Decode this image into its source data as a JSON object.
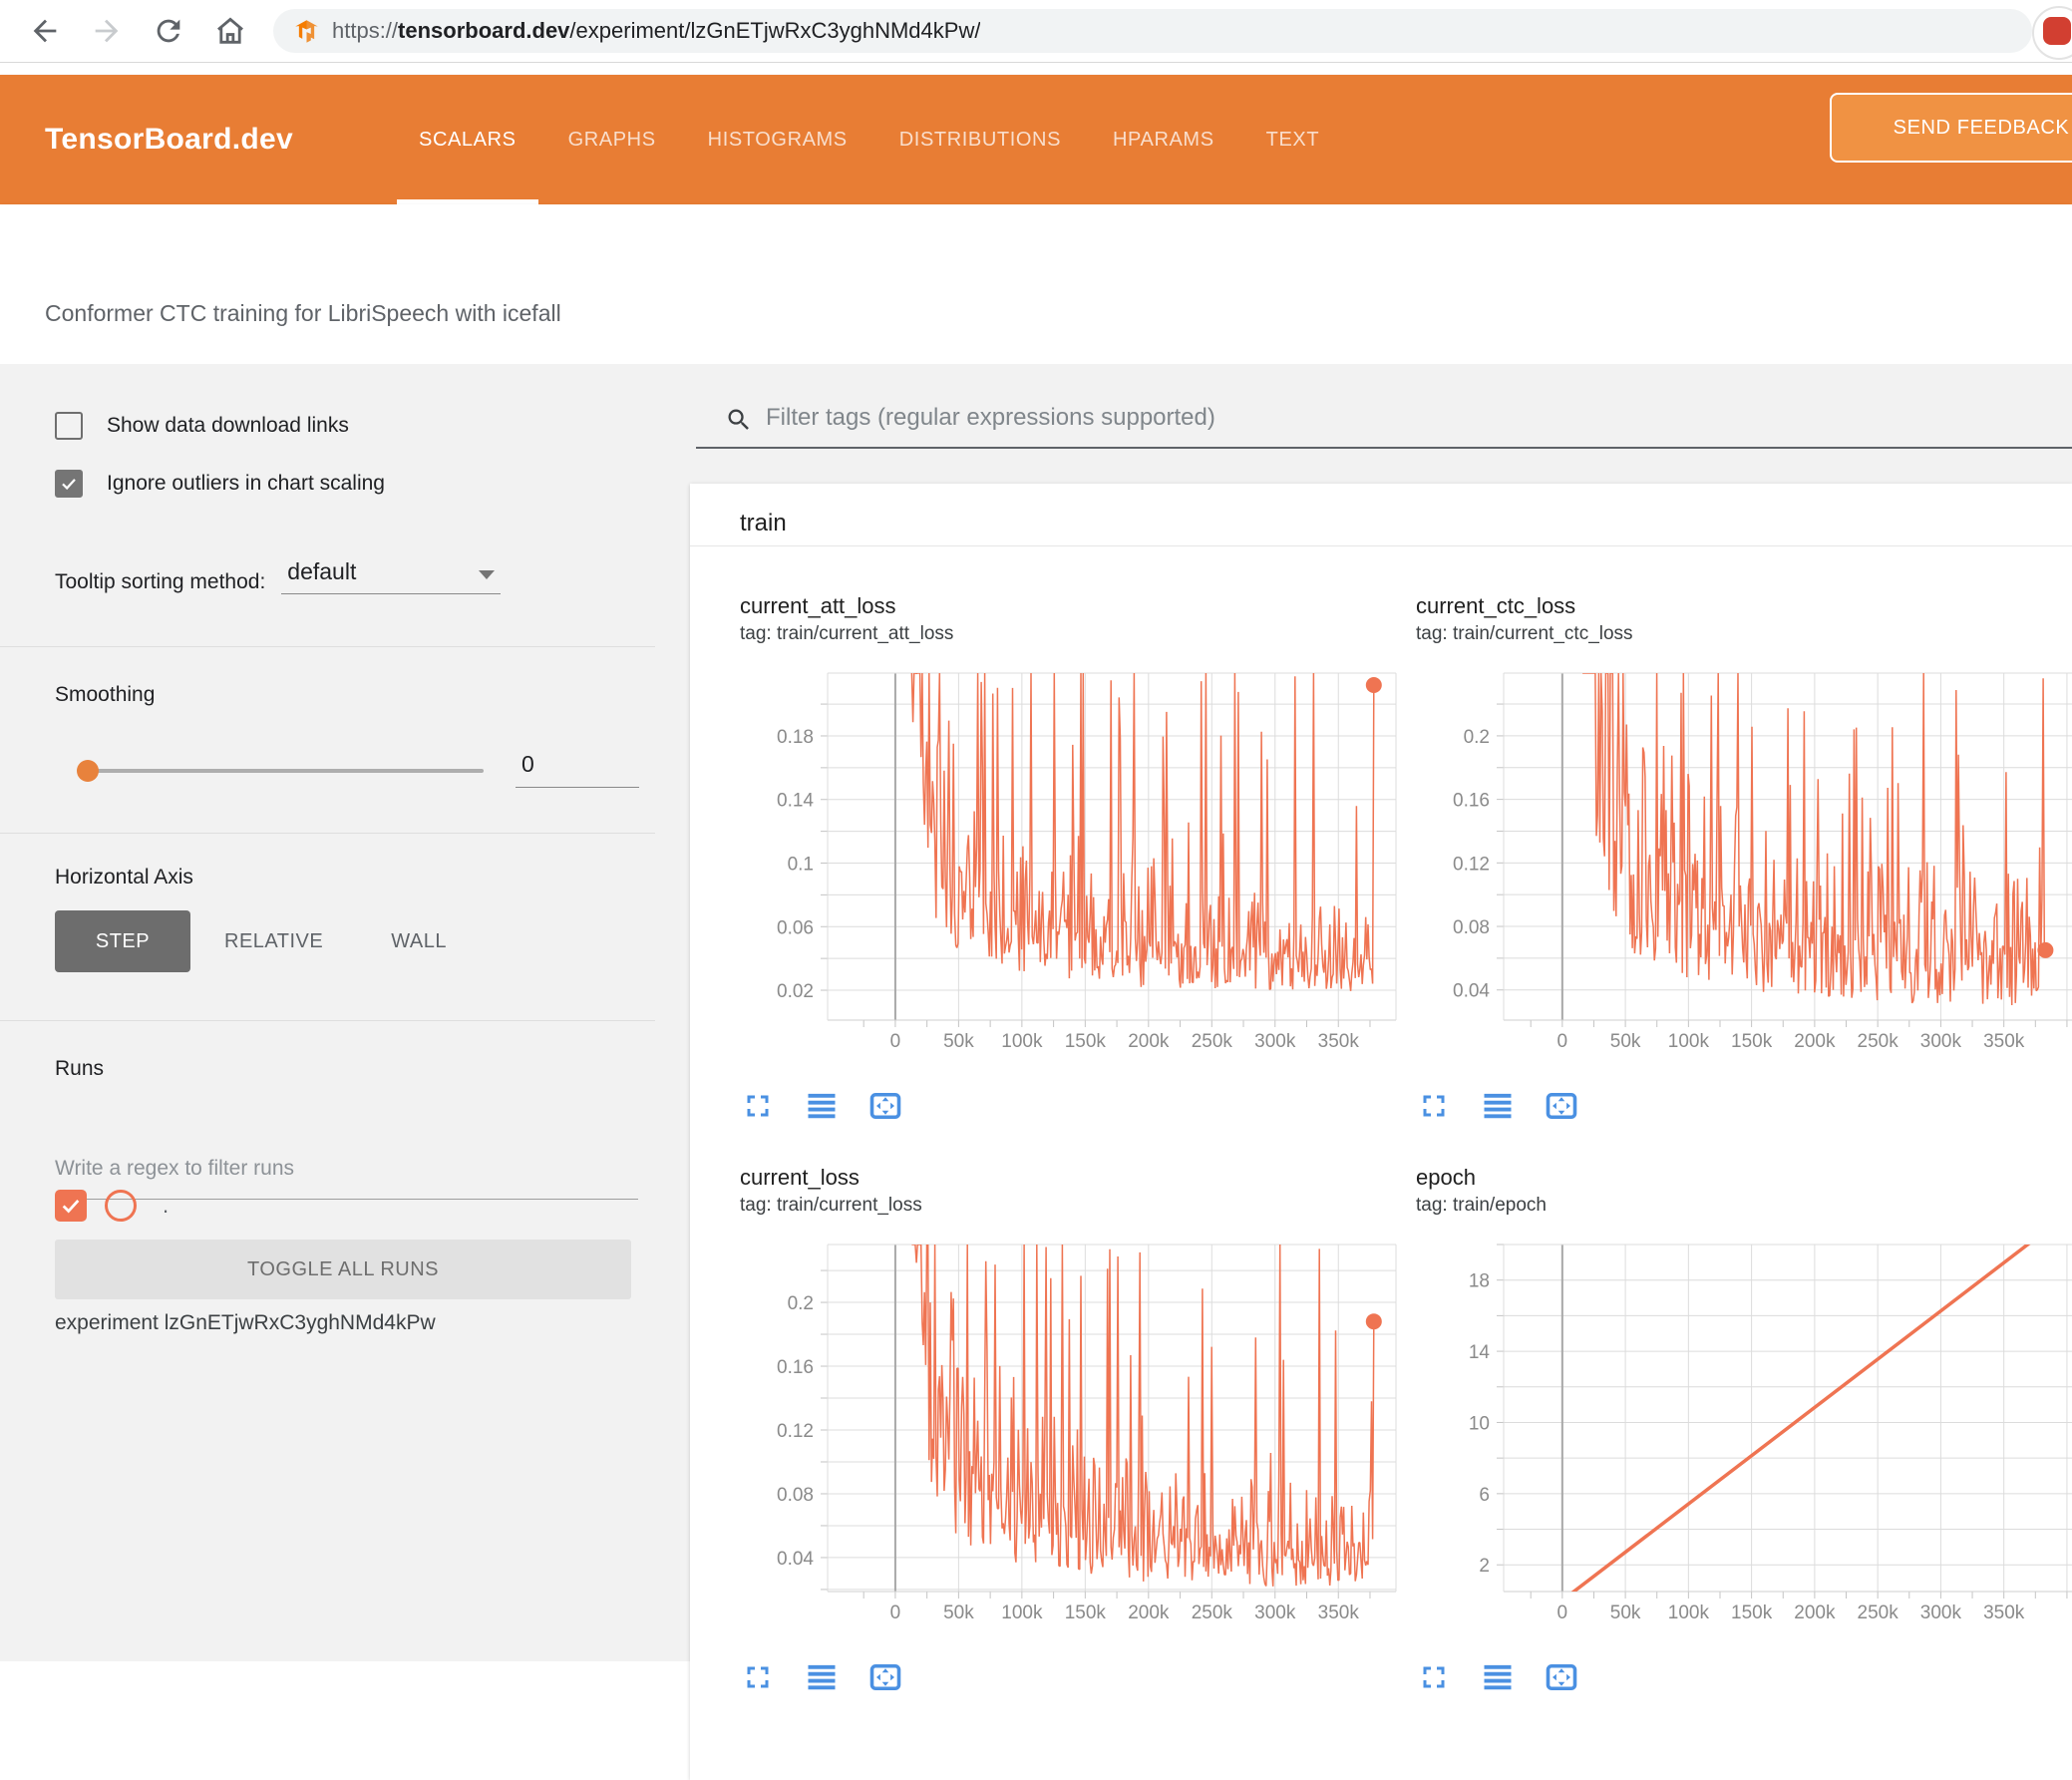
{
  "browser": {
    "url_scheme": "https://",
    "url_domain": "tensorboard.dev",
    "url_path": "/experiment/lzGnETjwRxC3yghNMd4kPw/"
  },
  "header": {
    "brand": "TensorBoard.dev",
    "tabs": [
      {
        "label": "SCALARS",
        "active": true
      },
      {
        "label": "GRAPHS",
        "active": false
      },
      {
        "label": "HISTOGRAMS",
        "active": false
      },
      {
        "label": "DISTRIBUTIONS",
        "active": false
      },
      {
        "label": "HPARAMS",
        "active": false
      },
      {
        "label": "TEXT",
        "active": false
      }
    ],
    "feedback_label": "SEND FEEDBACK"
  },
  "title_band": {
    "title": "Conformer CTC training for LibriSpeech with icefall"
  },
  "sidebar": {
    "show_download_label": "Show data download links",
    "show_download_checked": false,
    "ignore_outliers_label": "Ignore outliers in chart scaling",
    "ignore_outliers_checked": true,
    "tooltip_label": "Tooltip sorting method:",
    "tooltip_value": "default",
    "smoothing_label": "Smoothing",
    "smoothing_value": "0",
    "haxis_label": "Horizontal Axis",
    "haxis_options": [
      "STEP",
      "RELATIVE",
      "WALL"
    ],
    "haxis_selected": "STEP",
    "runs_label": "Runs",
    "runs_filter_placeholder": "Write a regex to filter runs",
    "run_name": ".",
    "run_checked": true,
    "toggle_all_label": "TOGGLE ALL RUNS",
    "experiment_label": "experiment lzGnETjwRxC3yghNMd4kPw"
  },
  "main": {
    "filter_placeholder": "Filter tags (regular expressions supported)",
    "group_label": "train"
  },
  "colors": {
    "header_orange": "#e87d34",
    "run_orange": "#ef7452",
    "action_blue": "#4a90e2"
  },
  "chart_data": [
    {
      "type": "line",
      "title": "current_att_loss",
      "tag_line": "tag: train/current_att_loss",
      "color": "#ef7452",
      "legend": ".",
      "xlim": [
        -53500,
        395500
      ],
      "ylim": [
        0.0012,
        0.2195
      ],
      "bleed": false,
      "xminor_start": -25000,
      "xminor_step": 25000,
      "xticks": [
        {
          "v": 0,
          "label": "0"
        },
        {
          "v": 50000,
          "label": "50k"
        },
        {
          "v": 100000,
          "label": "100k"
        },
        {
          "v": 150000,
          "label": "150k"
        },
        {
          "v": 200000,
          "label": "200k"
        },
        {
          "v": 250000,
          "label": "250k"
        },
        {
          "v": 300000,
          "label": "300k"
        },
        {
          "v": 350000,
          "label": "350k"
        },
        {
          "v": 400000,
          "label": ""
        }
      ],
      "yticks": [
        {
          "v": 0.02,
          "label": "0.02"
        },
        {
          "v": 0.04,
          "label": ""
        },
        {
          "v": 0.06,
          "label": "0.06"
        },
        {
          "v": 0.08,
          "label": ""
        },
        {
          "v": 0.1,
          "label": "0.1"
        },
        {
          "v": 0.12,
          "label": ""
        },
        {
          "v": 0.14,
          "label": "0.14"
        },
        {
          "v": 0.16,
          "label": ""
        },
        {
          "v": 0.18,
          "label": "0.18"
        },
        {
          "v": 0.2,
          "label": ""
        }
      ],
      "series": {
        "start": 13000,
        "end": 378000,
        "n": 400,
        "seed": 11,
        "trend": [
          [
            13000,
            0.3
          ],
          [
            20000,
            0.165
          ],
          [
            30000,
            0.1
          ],
          [
            50000,
            0.068
          ],
          [
            75000,
            0.058
          ],
          [
            100000,
            0.052
          ],
          [
            130000,
            0.046
          ],
          [
            160000,
            0.04
          ],
          [
            200000,
            0.036
          ],
          [
            250000,
            0.034
          ],
          [
            300000,
            0.032
          ],
          [
            340000,
            0.031
          ],
          [
            378000,
            0.03
          ]
        ],
        "noise": {
          "jit": 0.85,
          "med_p": 0.3,
          "med": [
            1.3,
            1.2
          ],
          "big_p": 0.06,
          "big": [
            2.5,
            3.5
          ],
          "huge_p": 0.03
        },
        "end_value": 0.212
      },
      "end_dot": true,
      "stroke": 1.5
    },
    {
      "type": "line",
      "title": "current_ctc_loss",
      "tag_line": "tag: train/current_ctc_loss",
      "color": "#ef7452",
      "legend": ".",
      "xlim": [
        -46500,
        404000
      ],
      "ylim": [
        0.021,
        0.2395
      ],
      "bleed": true,
      "xminor_start": -25000,
      "xminor_step": 25000,
      "xticks": [
        {
          "v": 0,
          "label": "0"
        },
        {
          "v": 50000,
          "label": "50k"
        },
        {
          "v": 100000,
          "label": "100k"
        },
        {
          "v": 150000,
          "label": "150k"
        },
        {
          "v": 200000,
          "label": "200k"
        },
        {
          "v": 250000,
          "label": "250k"
        },
        {
          "v": 300000,
          "label": "300k"
        },
        {
          "v": 350000,
          "label": "350k"
        },
        {
          "v": 400000,
          "label": ""
        }
      ],
      "yticks": [
        {
          "v": 0.04,
          "label": "0.04"
        },
        {
          "v": 0.06,
          "label": ""
        },
        {
          "v": 0.08,
          "label": "0.08"
        },
        {
          "v": 0.1,
          "label": ""
        },
        {
          "v": 0.12,
          "label": "0.12"
        },
        {
          "v": 0.14,
          "label": ""
        },
        {
          "v": 0.16,
          "label": "0.16"
        },
        {
          "v": 0.18,
          "label": ""
        },
        {
          "v": 0.2,
          "label": "0.2"
        },
        {
          "v": 0.22,
          "label": ""
        }
      ],
      "series": {
        "start": 16000,
        "end": 383000,
        "n": 400,
        "seed": 23,
        "trend": [
          [
            16000,
            0.4
          ],
          [
            25000,
            0.22
          ],
          [
            40000,
            0.13
          ],
          [
            60000,
            0.1
          ],
          [
            90000,
            0.082
          ],
          [
            120000,
            0.072
          ],
          [
            150000,
            0.065
          ],
          [
            200000,
            0.057
          ],
          [
            250000,
            0.053
          ],
          [
            300000,
            0.051
          ],
          [
            340000,
            0.05
          ],
          [
            383000,
            0.048
          ]
        ],
        "noise": {
          "jit": 0.85,
          "med_p": 0.3,
          "med": [
            1.3,
            1.0
          ],
          "big_p": 0.055,
          "big": [
            2.2,
            1.8
          ],
          "huge_p": 0.008
        },
        "end_value": 0.065
      },
      "end_dot": true,
      "stroke": 1.5
    },
    {
      "type": "line",
      "title": "current_loss",
      "tag_line": "tag: train/current_loss",
      "color": "#ef7452",
      "legend": ".",
      "xlim": [
        -53500,
        395500
      ],
      "ylim": [
        0.0187,
        0.2363
      ],
      "bleed": false,
      "xminor_start": -25000,
      "xminor_step": 25000,
      "xticks": [
        {
          "v": 0,
          "label": "0"
        },
        {
          "v": 50000,
          "label": "50k"
        },
        {
          "v": 100000,
          "label": "100k"
        },
        {
          "v": 150000,
          "label": "150k"
        },
        {
          "v": 200000,
          "label": "200k"
        },
        {
          "v": 250000,
          "label": "250k"
        },
        {
          "v": 300000,
          "label": "300k"
        },
        {
          "v": 350000,
          "label": "350k"
        },
        {
          "v": 400000,
          "label": ""
        }
      ],
      "yticks": [
        {
          "v": 0.02,
          "label": ""
        },
        {
          "v": 0.04,
          "label": "0.04"
        },
        {
          "v": 0.06,
          "label": ""
        },
        {
          "v": 0.08,
          "label": "0.08"
        },
        {
          "v": 0.1,
          "label": ""
        },
        {
          "v": 0.12,
          "label": "0.12"
        },
        {
          "v": 0.14,
          "label": ""
        },
        {
          "v": 0.16,
          "label": "0.16"
        },
        {
          "v": 0.18,
          "label": ""
        },
        {
          "v": 0.2,
          "label": "0.2"
        },
        {
          "v": 0.22,
          "label": ""
        }
      ],
      "series": {
        "start": 13000,
        "end": 378000,
        "n": 400,
        "seed": 37,
        "trend": [
          [
            13000,
            0.34
          ],
          [
            20000,
            0.19
          ],
          [
            30000,
            0.12
          ],
          [
            50000,
            0.082
          ],
          [
            75000,
            0.068
          ],
          [
            100000,
            0.06
          ],
          [
            130000,
            0.052
          ],
          [
            160000,
            0.046
          ],
          [
            200000,
            0.04
          ],
          [
            250000,
            0.038
          ],
          [
            300000,
            0.036
          ],
          [
            340000,
            0.035
          ],
          [
            378000,
            0.034
          ]
        ],
        "noise": {
          "jit": 0.85,
          "med_p": 0.3,
          "med": [
            1.3,
            1.2
          ],
          "big_p": 0.06,
          "big": [
            2.5,
            3.0
          ],
          "huge_p": 0.022
        },
        "end_value": 0.188
      },
      "end_dot": true,
      "stroke": 1.5
    },
    {
      "type": "line",
      "title": "epoch",
      "tag_line": "tag: train/epoch",
      "color": "#ef7452",
      "legend": ".",
      "xlim": [
        -46500,
        404000
      ],
      "ylim": [
        0.5,
        20.0
      ],
      "bleed": true,
      "xminor_start": -25000,
      "xminor_step": 25000,
      "xticks": [
        {
          "v": 0,
          "label": "0"
        },
        {
          "v": 50000,
          "label": "50k"
        },
        {
          "v": 100000,
          "label": "100k"
        },
        {
          "v": 150000,
          "label": "150k"
        },
        {
          "v": 200000,
          "label": "200k"
        },
        {
          "v": 250000,
          "label": "250k"
        },
        {
          "v": 300000,
          "label": "300k"
        },
        {
          "v": 350000,
          "label": "350k"
        },
        {
          "v": 400000,
          "label": ""
        }
      ],
      "yticks": [
        {
          "v": 2,
          "label": "2"
        },
        {
          "v": 4,
          "label": ""
        },
        {
          "v": 6,
          "label": "6"
        },
        {
          "v": 8,
          "label": ""
        },
        {
          "v": 10,
          "label": "10"
        },
        {
          "v": 12,
          "label": ""
        },
        {
          "v": 14,
          "label": "14"
        },
        {
          "v": 16,
          "label": ""
        },
        {
          "v": 18,
          "label": "18"
        },
        {
          "v": 20,
          "label": ""
        }
      ],
      "line_points": [
        [
          0,
          0
        ],
        [
          380000,
          20.6
        ]
      ],
      "end_dot": false,
      "stroke": 3.5
    }
  ]
}
